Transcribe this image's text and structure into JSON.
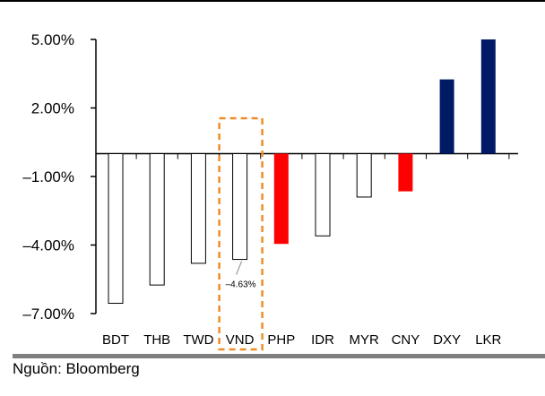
{
  "chart_data": {
    "type": "bar",
    "categories": [
      "BDT",
      "THB",
      "TWD",
      "VND",
      "PHP",
      "IDR",
      "MYR",
      "CNY",
      "DXY",
      "LKR"
    ],
    "values": [
      -6.55,
      -5.75,
      -4.8,
      -4.63,
      -3.95,
      -3.6,
      -1.9,
      -1.65,
      3.25,
      5.0
    ],
    "bar_styles": [
      "outline",
      "outline",
      "outline",
      "outline",
      "red",
      "outline",
      "outline",
      "red",
      "navy",
      "navy"
    ],
    "colors": {
      "outline": "#ffffff",
      "red": "#ff0000",
      "navy": "#001a66",
      "highlight": "#f08c28"
    },
    "ylim": [
      -7.0,
      5.0
    ],
    "yticks": [
      5.0,
      2.0,
      -1.0,
      -4.0,
      -7.0
    ],
    "ytick_labels": [
      "5.00%",
      "2.00%",
      "–1.00%",
      "–4.00%",
      "–7.00%"
    ],
    "highlight_category": "VND",
    "annotation": {
      "category": "VND",
      "text": "–4.63%"
    },
    "title": "",
    "xlabel": "",
    "ylabel": ""
  },
  "source": "Nguồn: Bloomberg"
}
